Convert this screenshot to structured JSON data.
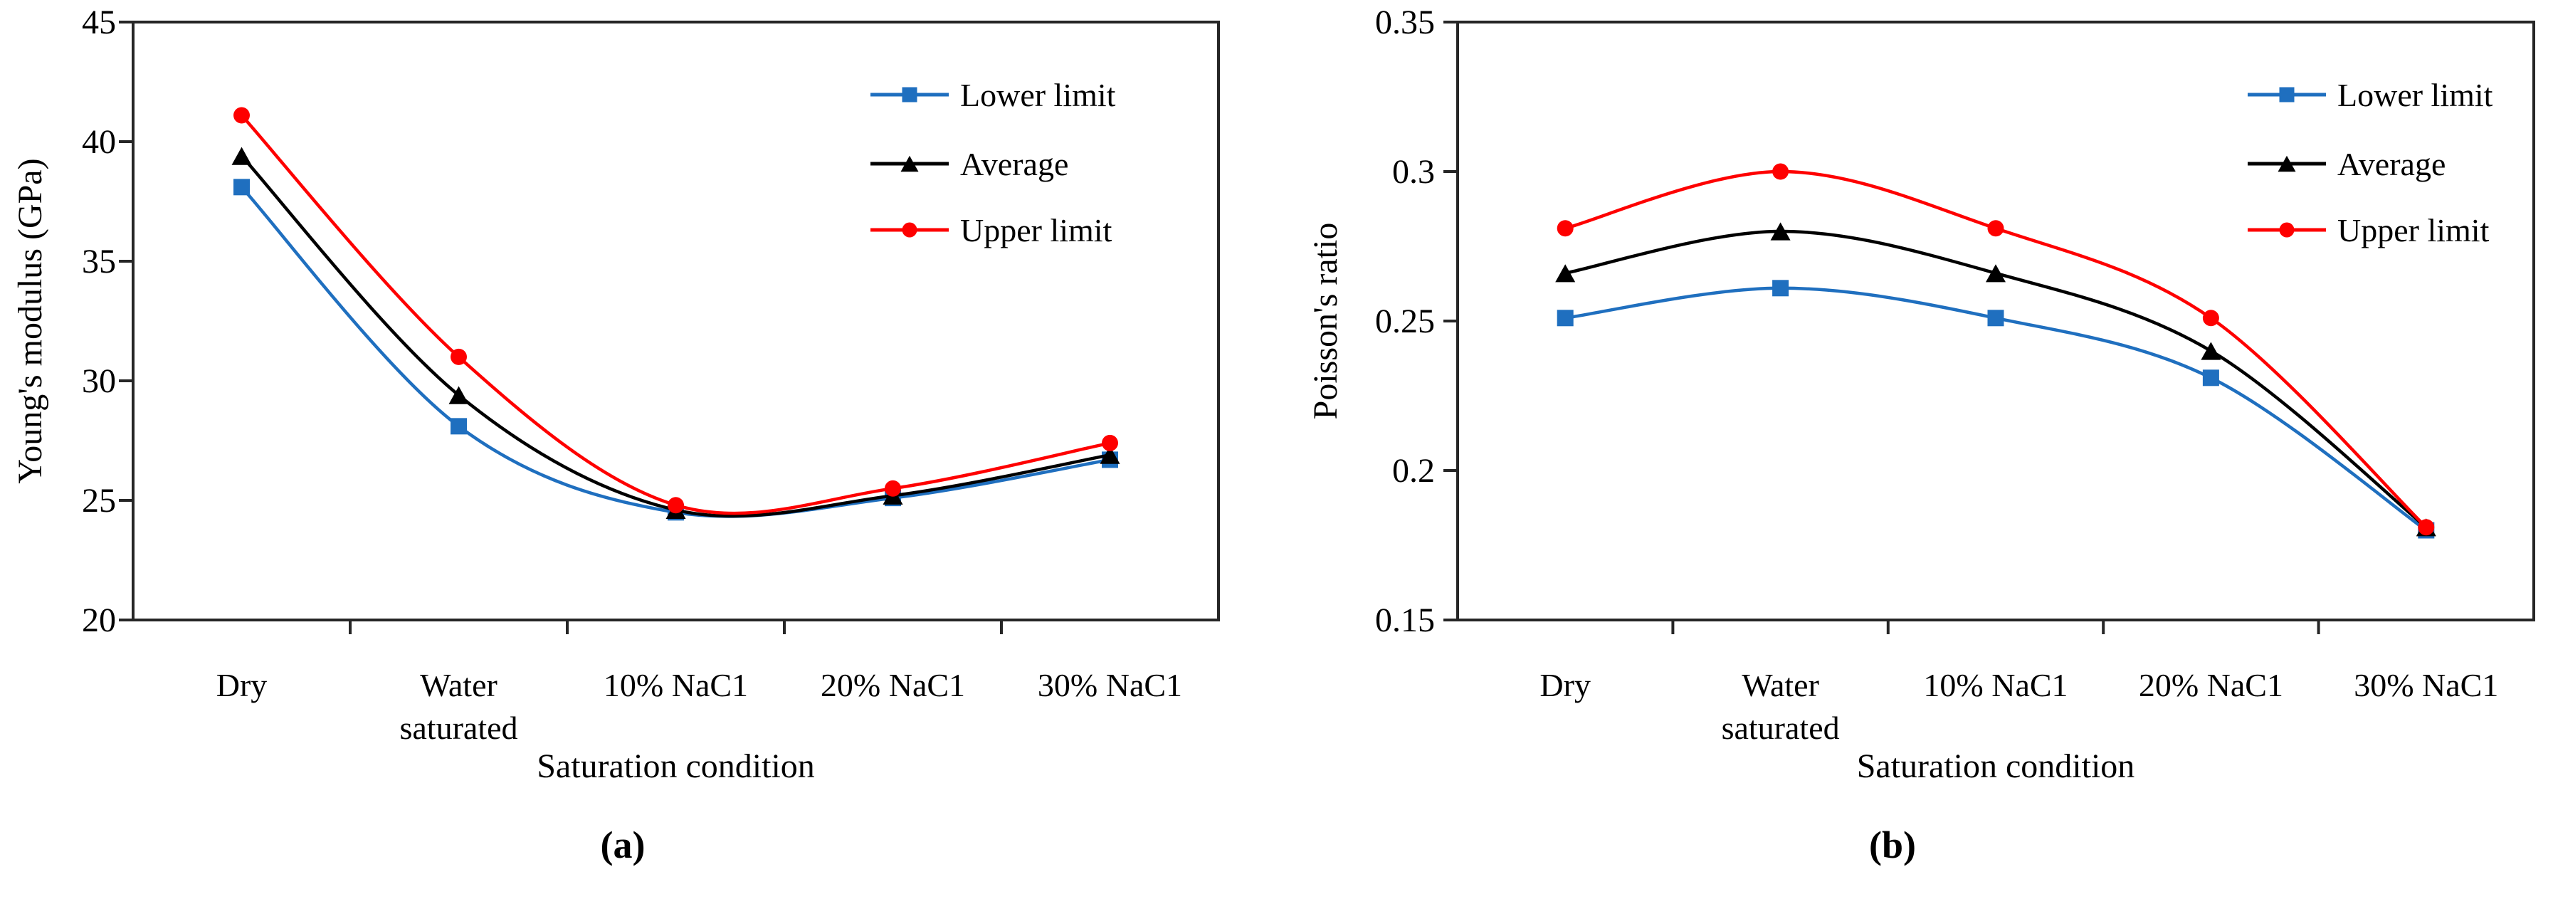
{
  "figure": {
    "description": "Two-panel line figure of rock elastic properties versus saturation condition",
    "legend_labels": [
      "Lower limit",
      "Average",
      "Upper limit"
    ],
    "colors": {
      "lower_limit": "#1f6fbf",
      "average": "#000000",
      "upper_limit": "#fe0000",
      "axis": "#262626"
    }
  },
  "chart_data": [
    {
      "type": "line",
      "caption": "(a)",
      "xlabel": "Saturation condition",
      "ylabel": "Young's modulus (GPa)",
      "ylim": [
        20,
        45
      ],
      "yticks": [
        20,
        25,
        30,
        35,
        40,
        45
      ],
      "ytick_labels": [
        "20",
        "25",
        "30",
        "35",
        "40",
        "45"
      ],
      "grid": false,
      "legend_position": "top-right",
      "line_style": "smooth",
      "categories": [
        "Dry",
        "Water saturated",
        "10% NaC1",
        "20% NaC1",
        "30% NaC1"
      ],
      "categories_display": [
        [
          "Dry"
        ],
        [
          "Water",
          "saturated"
        ],
        [
          "10% NaC1"
        ],
        [
          "20% NaC1"
        ],
        [
          "30% NaC1"
        ]
      ],
      "series": [
        {
          "name": "Lower limit",
          "color": "#1f6fbf",
          "marker": "square",
          "values": [
            38.1,
            28.1,
            24.5,
            25.1,
            26.7
          ]
        },
        {
          "name": "Average",
          "color": "#000000",
          "marker": "triangle",
          "values": [
            39.4,
            29.4,
            24.6,
            25.2,
            26.9
          ]
        },
        {
          "name": "Upper limit",
          "color": "#fe0000",
          "marker": "circle",
          "values": [
            41.1,
            31.0,
            24.8,
            25.5,
            27.4
          ]
        }
      ]
    },
    {
      "type": "line",
      "caption": "(b)",
      "xlabel": "Saturation condition",
      "ylabel": "Poisson's ratio",
      "ylim": [
        0.15,
        0.35
      ],
      "yticks": [
        0.15,
        0.2,
        0.25,
        0.3,
        0.35
      ],
      "ytick_labels": [
        "0.15",
        "0.2",
        "0.25",
        "0.3",
        "0.35"
      ],
      "grid": false,
      "legend_position": "top-right",
      "line_style": "smooth",
      "categories": [
        "Dry",
        "Water saturated",
        "10% NaC1",
        "20% NaC1",
        "30% NaC1"
      ],
      "categories_display": [
        [
          "Dry"
        ],
        [
          "Water",
          "saturated"
        ],
        [
          "10% NaC1"
        ],
        [
          "20% NaC1"
        ],
        [
          "30% NaC1"
        ]
      ],
      "series": [
        {
          "name": "Lower limit",
          "color": "#1f6fbf",
          "marker": "square",
          "values": [
            0.251,
            0.261,
            0.251,
            0.231,
            0.18
          ]
        },
        {
          "name": "Average",
          "color": "#000000",
          "marker": "triangle",
          "values": [
            0.266,
            0.28,
            0.266,
            0.24,
            0.181
          ]
        },
        {
          "name": "Upper limit",
          "color": "#fe0000",
          "marker": "circle",
          "values": [
            0.281,
            0.3,
            0.281,
            0.251,
            0.181
          ]
        }
      ]
    }
  ]
}
